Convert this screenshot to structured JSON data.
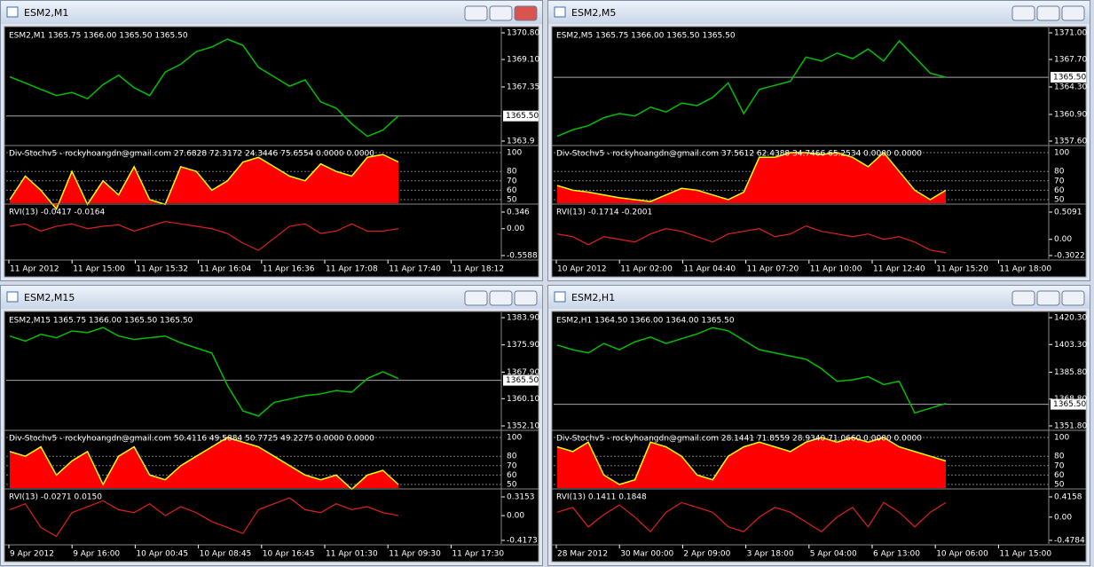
{
  "windows": [
    {
      "title": "ESM2,M1",
      "header": "ESM2,M1  1365.75 1366.00 1365.50 1365.50",
      "price_ticks": [
        {
          "value": 1370.8,
          "label": "1370.80"
        },
        {
          "value": 1369.1,
          "label": "1369.10"
        },
        {
          "value": 1367.35,
          "label": "1367.35"
        },
        1363.9
      ],
      "current_price": {
        "value": 1365.5,
        "label": "1365.50"
      },
      "price": [
        1368.0,
        1367.6,
        1367.2,
        1366.8,
        1367.0,
        1366.6,
        1367.5,
        1368.1,
        1367.3,
        1366.8,
        1368.3,
        1368.8,
        1369.6,
        1369.9,
        1370.4,
        1370.0,
        1368.6,
        1368.0,
        1367.4,
        1367.8,
        1366.4,
        1366.0,
        1365.0,
        1364.2,
        1364.6,
        1365.5
      ],
      "stoch_label": "Div-Stochv5 - rockyhoangdn@gmail.com 27.6828 72.3172 24.3446 75.6554 0.0000 0.0000",
      "stoch_ticks": [
        100,
        80,
        70,
        60,
        50
      ],
      "stoch": [
        50,
        75,
        60,
        40,
        80,
        45,
        70,
        55,
        85,
        50,
        45,
        85,
        80,
        60,
        70,
        90,
        95,
        85,
        75,
        70,
        88,
        80,
        75,
        95,
        98,
        90
      ],
      "rvi_label": "RVI(13) -0.0417 -0.0164",
      "rvi_ticks": [
        0.346,
        {
          "value": 0,
          "label": "0.00"
        },
        -0.5588
      ],
      "rvi": [
        0.05,
        0.1,
        -0.05,
        0.05,
        0.1,
        0,
        0.05,
        0.08,
        -0.05,
        0.05,
        0.15,
        0.1,
        0.05,
        0,
        -0.1,
        -0.3,
        -0.45,
        -0.2,
        0.05,
        0.1,
        -0.1,
        -0.05,
        0.1,
        -0.05,
        -0.05,
        0
      ],
      "time_labels": [
        "11 Apr 2012",
        "11 Apr 15:00",
        "11 Apr 15:32",
        "11 Apr 16:04",
        "11 Apr 16:36",
        "11 Apr 17:08",
        "11 Apr 17:40",
        "11 Apr 18:12"
      ]
    },
    {
      "title": "ESM2,M5",
      "header": "ESM2,M5  1365.75 1366.00 1365.50 1365.50",
      "price_ticks": [
        {
          "value": 1371,
          "label": "1371.00"
        },
        {
          "value": 1367.7,
          "label": "1367.70"
        },
        {
          "value": 1364.3,
          "label": "1364.30"
        },
        {
          "value": 1360.9,
          "label": "1360.90"
        },
        {
          "value": 1357.6,
          "label": "1357.60"
        }
      ],
      "current_price": {
        "value": 1365.5,
        "label": "1365.50"
      },
      "price": [
        1358.2,
        1359.0,
        1359.5,
        1360.5,
        1361.0,
        1360.7,
        1361.8,
        1361.2,
        1362.3,
        1362.0,
        1363.0,
        1364.8,
        1361.0,
        1364.0,
        1364.5,
        1365.0,
        1368.0,
        1367.5,
        1368.5,
        1367.8,
        1369.0,
        1367.5,
        1370.0,
        1368.0,
        1366.0,
        1365.5
      ],
      "stoch_label": "Div-Stochv5 - rockyhoangdn@gmail.com 37.5612 62.4388 34.7466 65.2534 0.0000 0.0000",
      "stoch_ticks": [
        100,
        80,
        70,
        60,
        50
      ],
      "stoch": [
        65,
        60,
        58,
        55,
        52,
        50,
        48,
        55,
        62,
        60,
        55,
        50,
        58,
        95,
        95,
        100,
        100,
        98,
        100,
        95,
        85,
        100,
        80,
        60,
        50,
        60
      ],
      "rvi_label": "RVI(13) -0.1714 -0.2001",
      "rvi_ticks": [
        0.5091,
        {
          "value": 0,
          "label": "0.00"
        },
        -0.3022
      ],
      "rvi": [
        0.1,
        0.05,
        -0.1,
        0.05,
        0,
        -0.05,
        0.1,
        0.2,
        0.15,
        0.05,
        -0.05,
        0.1,
        0.15,
        0.2,
        0.05,
        0.1,
        0.25,
        0.15,
        0.1,
        0.05,
        0.1,
        0,
        0.05,
        -0.05,
        -0.2,
        -0.25
      ],
      "time_labels": [
        "10 Apr 2012",
        "11 Apr 02:00",
        "11 Apr 04:40",
        "11 Apr 07:20",
        "11 Apr 10:00",
        "11 Apr 12:40",
        "11 Apr 15:20",
        "11 Apr 18:00"
      ]
    },
    {
      "title": "ESM2,M15",
      "header": "ESM2,M15  1365.75 1366.00 1365.50 1365.50",
      "price_ticks": [
        {
          "value": 1383.9,
          "label": "1383.90"
        },
        {
          "value": 1375.9,
          "label": "1375.90"
        },
        {
          "value": 1367.9,
          "label": "1367.90"
        },
        {
          "value": 1360.1,
          "label": "1360.10"
        },
        {
          "value": 1352.1,
          "label": "1352.10"
        }
      ],
      "current_price": {
        "value": 1365.5,
        "label": "1365.50"
      },
      "price": [
        1378.5,
        1377.0,
        1379.0,
        1378.0,
        1380.0,
        1379.5,
        1381.0,
        1378.5,
        1377.5,
        1378.0,
        1378.5,
        1376.5,
        1375.0,
        1373.5,
        1364.0,
        1356.5,
        1355.0,
        1359.0,
        1360.0,
        1361.0,
        1361.5,
        1362.5,
        1362.0,
        1366.0,
        1368.0,
        1366.0
      ],
      "stoch_label": "Div-Stochv5 - rockyhoangdn@gmail.com 50.4116 49.5884 50.7725 49.2275 0.0000 0.0000",
      "stoch_ticks": [
        100,
        80,
        70,
        60,
        50
      ],
      "stoch": [
        85,
        80,
        90,
        60,
        75,
        85,
        50,
        80,
        90,
        60,
        55,
        70,
        80,
        90,
        100,
        95,
        90,
        80,
        70,
        60,
        55,
        60,
        45,
        60,
        65,
        50
      ],
      "rvi_label": "RVI(13) -0.0271 0.0150",
      "rvi_ticks": [
        0.3153,
        {
          "value": 0,
          "label": "0.00"
        },
        -0.4173
      ],
      "rvi": [
        0.1,
        0.2,
        -0.2,
        -0.35,
        0.05,
        0.15,
        0.25,
        0.1,
        0.05,
        0.2,
        0,
        0.15,
        0.05,
        -0.1,
        -0.2,
        -0.3,
        0.1,
        0.2,
        0.3,
        0.1,
        0.05,
        0.2,
        0.1,
        0.15,
        0.05,
        0
      ],
      "time_labels": [
        "9 Apr 2012",
        "9 Apr 16:00",
        "10 Apr 00:45",
        "10 Apr 08:45",
        "10 Apr 16:45",
        "11 Apr 01:30",
        "11 Apr 09:30",
        "11 Apr 17:30"
      ]
    },
    {
      "title": "ESM2,H1",
      "header": "ESM2,H1  1364.50 1366.00 1364.00 1365.50",
      "price_ticks": [
        {
          "value": 1420.3,
          "label": "1420.30"
        },
        {
          "value": 1403.3,
          "label": "1403.30"
        },
        {
          "value": 1385.8,
          "label": "1385.80"
        },
        {
          "value": 1368.8,
          "label": "1368.80"
        },
        {
          "value": 1351.8,
          "label": "1351.80"
        }
      ],
      "current_price": {
        "value": 1365.5,
        "label": "1365.50"
      },
      "price": [
        1403,
        1400,
        1398,
        1404,
        1400,
        1405,
        1408,
        1404,
        1407,
        1410,
        1414,
        1412,
        1406,
        1400,
        1398,
        1396,
        1394,
        1388,
        1380,
        1381,
        1383,
        1378,
        1380,
        1360,
        1363,
        1366
      ],
      "stoch_label": "Div-Stochv5 - rockyhoangdn@gmail.com 28.1441 71.8559 28.9340 71.0660 0.0000 0.0000",
      "stoch_ticks": [
        100,
        80,
        70,
        60,
        50
      ],
      "stoch": [
        90,
        85,
        95,
        60,
        50,
        55,
        95,
        90,
        80,
        60,
        55,
        80,
        90,
        95,
        90,
        85,
        95,
        100,
        95,
        100,
        95,
        100,
        90,
        85,
        80,
        75
      ],
      "rvi_label": "RVI(13) 0.1411 0.1848",
      "rvi_ticks": [
        0.4158,
        {
          "value": 0,
          "label": "0.00"
        },
        -0.4784
      ],
      "rvi": [
        0.1,
        0.2,
        -0.2,
        0.05,
        0.25,
        0,
        -0.3,
        0.1,
        0.3,
        0.2,
        0.1,
        -0.2,
        -0.3,
        0,
        0.2,
        0.1,
        -0.1,
        -0.3,
        0,
        0.2,
        -0.2,
        0.3,
        0.1,
        -0.2,
        0.1,
        0.3
      ],
      "time_labels": [
        "28 Mar 2012",
        "30 Mar 00:00",
        "2 Apr 09:00",
        "3 Apr 18:00",
        "5 Apr 04:00",
        "6 Apr 13:00",
        "10 Apr 06:00",
        "11 Apr 15:00"
      ]
    }
  ]
}
